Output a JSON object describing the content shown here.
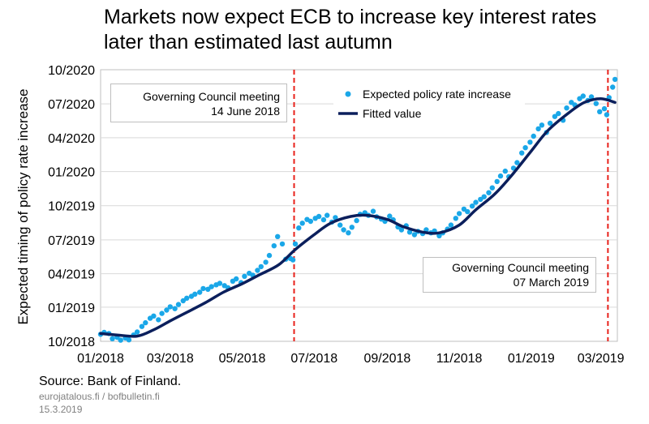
{
  "title_line1": "Markets now expect ECB to increase key interest rates",
  "title_line2": "later than estimated last autumn",
  "ylabel": "Expected timing of policy rate increase",
  "source": "Source: Bank of Finland.",
  "credit_line1": "eurojatalous.fi  / bofbulletin.fi",
  "credit_line2": "15.3.2019",
  "annotations": [
    {
      "line1": "Governing Council meeting",
      "line2": "14 June 2018",
      "date": "2018-06-14"
    },
    {
      "line1": "Governing Council meeting",
      "line2": "07 March 2019",
      "date": "2019-03-07"
    }
  ],
  "colors": {
    "scatter": "#1aa7e8",
    "fitted": "#0b1f5c",
    "vline": "#e8211b",
    "grid": "#d9d9d9"
  },
  "chart_data": {
    "type": "scatter",
    "title": "Markets now expect ECB to increase key interest rates later than estimated last autumn",
    "xlabel": "",
    "ylabel": "Expected timing of policy rate increase",
    "x_ticks": [
      "01/2018",
      "03/2018",
      "05/2018",
      "07/2018",
      "09/2018",
      "11/2018",
      "01/2019",
      "03/2019"
    ],
    "y_ticks": [
      "10/2018",
      "01/2019",
      "04/2019",
      "07/2019",
      "10/2019",
      "01/2020",
      "04/2020",
      "07/2020",
      "10/2020"
    ],
    "xlim": [
      "2018-01-01",
      "2019-03-15"
    ],
    "ylim": [
      "2018-10-01",
      "2020-10-01"
    ],
    "grid": "horizontal",
    "legend_position": "top-center",
    "series": [
      {
        "name": "Expected policy rate increase",
        "kind": "scatter",
        "x": [
          "2018-01-01",
          "2018-01-04",
          "2018-01-08",
          "2018-01-11",
          "2018-01-15",
          "2018-01-18",
          "2018-01-22",
          "2018-01-25",
          "2018-01-29",
          "2018-02-01",
          "2018-02-05",
          "2018-02-08",
          "2018-02-12",
          "2018-02-15",
          "2018-02-19",
          "2018-02-22",
          "2018-02-26",
          "2018-03-01",
          "2018-03-05",
          "2018-03-08",
          "2018-03-12",
          "2018-03-15",
          "2018-03-19",
          "2018-03-22",
          "2018-03-26",
          "2018-03-29",
          "2018-04-02",
          "2018-04-05",
          "2018-04-09",
          "2018-04-12",
          "2018-04-16",
          "2018-04-19",
          "2018-04-23",
          "2018-04-26",
          "2018-04-30",
          "2018-05-03",
          "2018-05-07",
          "2018-05-10",
          "2018-05-14",
          "2018-05-17",
          "2018-05-21",
          "2018-05-24",
          "2018-05-28",
          "2018-05-31",
          "2018-06-04",
          "2018-06-07",
          "2018-06-11",
          "2018-06-13",
          "2018-06-15",
          "2018-06-18",
          "2018-06-21",
          "2018-06-25",
          "2018-06-28",
          "2018-07-02",
          "2018-07-05",
          "2018-07-09",
          "2018-07-12",
          "2018-07-16",
          "2018-07-19",
          "2018-07-23",
          "2018-07-26",
          "2018-07-30",
          "2018-08-02",
          "2018-08-06",
          "2018-08-09",
          "2018-08-13",
          "2018-08-16",
          "2018-08-20",
          "2018-08-23",
          "2018-08-27",
          "2018-08-30",
          "2018-09-03",
          "2018-09-06",
          "2018-09-10",
          "2018-09-13",
          "2018-09-17",
          "2018-09-20",
          "2018-09-24",
          "2018-09-27",
          "2018-10-01",
          "2018-10-04",
          "2018-10-08",
          "2018-10-11",
          "2018-10-15",
          "2018-10-18",
          "2018-10-22",
          "2018-10-25",
          "2018-10-29",
          "2018-11-01",
          "2018-11-05",
          "2018-11-08",
          "2018-11-12",
          "2018-11-15",
          "2018-11-19",
          "2018-11-22",
          "2018-11-26",
          "2018-11-29",
          "2018-12-03",
          "2018-12-06",
          "2018-12-10",
          "2018-12-13",
          "2018-12-17",
          "2018-12-20",
          "2018-12-24",
          "2018-12-27",
          "2018-12-31",
          "2019-01-03",
          "2019-01-07",
          "2019-01-10",
          "2019-01-14",
          "2019-01-17",
          "2019-01-21",
          "2019-01-24",
          "2019-01-28",
          "2019-01-31",
          "2019-02-04",
          "2019-02-07",
          "2019-02-11",
          "2019-02-14",
          "2019-02-18",
          "2019-02-21",
          "2019-02-25",
          "2019-02-28",
          "2019-03-04",
          "2019-03-06",
          "2019-03-08",
          "2019-03-11",
          "2019-03-13"
        ],
        "y": [
          "2018-10-20",
          "2018-10-25",
          "2018-10-22",
          "2018-10-08",
          "2018-10-12",
          "2018-10-04",
          "2018-10-10",
          "2018-10-05",
          "2018-10-18",
          "2018-10-26",
          "2018-11-10",
          "2018-11-20",
          "2018-12-02",
          "2018-12-08",
          "2018-11-28",
          "2018-12-15",
          "2018-12-24",
          "2019-01-02",
          "2018-12-28",
          "2019-01-08",
          "2019-01-18",
          "2019-01-25",
          "2019-01-30",
          "2019-02-05",
          "2019-02-10",
          "2019-02-20",
          "2019-02-18",
          "2019-02-25",
          "2019-03-02",
          "2019-03-06",
          "2019-02-28",
          "2019-02-22",
          "2019-03-12",
          "2019-03-18",
          "2019-03-08",
          "2019-03-25",
          "2019-04-02",
          "2019-03-28",
          "2019-04-10",
          "2019-04-20",
          "2019-05-02",
          "2019-05-20",
          "2019-06-15",
          "2019-07-10",
          "2019-06-20",
          "2019-05-10",
          "2019-05-12",
          "2019-05-08",
          "2019-06-20",
          "2019-08-02",
          "2019-08-15",
          "2019-08-25",
          "2019-08-20",
          "2019-08-28",
          "2019-09-02",
          "2019-08-24",
          "2019-09-05",
          "2019-08-18",
          "2019-08-30",
          "2019-08-10",
          "2019-07-28",
          "2019-07-20",
          "2019-08-04",
          "2019-08-22",
          "2019-09-08",
          "2019-09-12",
          "2019-09-05",
          "2019-09-16",
          "2019-09-01",
          "2019-08-26",
          "2019-08-20",
          "2019-09-03",
          "2019-08-24",
          "2019-08-05",
          "2019-07-28",
          "2019-08-08",
          "2019-07-22",
          "2019-07-15",
          "2019-07-24",
          "2019-07-18",
          "2019-07-28",
          "2019-07-20",
          "2019-07-25",
          "2019-07-12",
          "2019-07-20",
          "2019-07-30",
          "2019-08-10",
          "2019-08-28",
          "2019-09-10",
          "2019-09-22",
          "2019-09-15",
          "2019-09-30",
          "2019-10-10",
          "2019-10-18",
          "2019-10-25",
          "2019-11-05",
          "2019-11-18",
          "2019-12-05",
          "2019-12-20",
          "2020-01-02",
          "2019-12-18",
          "2020-01-10",
          "2020-01-25",
          "2020-02-20",
          "2020-03-05",
          "2020-03-20",
          "2020-04-05",
          "2020-04-25",
          "2020-05-05",
          "2020-04-15",
          "2020-05-10",
          "2020-05-28",
          "2020-06-05",
          "2020-05-18",
          "2020-06-20",
          "2020-07-05",
          "2020-06-28",
          "2020-07-15",
          "2020-07-22",
          "2020-07-10",
          "2020-07-20",
          "2020-07-02",
          "2020-06-10",
          "2020-06-18",
          "2020-06-02",
          "2020-07-18",
          "2020-08-15",
          "2020-09-05"
        ]
      },
      {
        "name": "Fitted value",
        "kind": "line",
        "x": [
          "2018-01-01",
          "2018-01-15",
          "2018-02-01",
          "2018-02-15",
          "2018-03-01",
          "2018-03-15",
          "2018-04-01",
          "2018-04-15",
          "2018-05-01",
          "2018-05-15",
          "2018-06-01",
          "2018-06-15",
          "2018-07-01",
          "2018-07-15",
          "2018-08-01",
          "2018-08-15",
          "2018-09-01",
          "2018-09-15",
          "2018-10-01",
          "2018-10-15",
          "2018-11-01",
          "2018-11-15",
          "2018-12-01",
          "2018-12-15",
          "2019-01-01",
          "2019-01-15",
          "2019-02-01",
          "2019-02-15",
          "2019-03-01",
          "2019-03-13"
        ],
        "y": [
          "2018-10-22",
          "2018-10-18",
          "2018-10-15",
          "2018-11-01",
          "2018-11-25",
          "2018-12-18",
          "2019-01-15",
          "2019-02-10",
          "2019-03-05",
          "2019-03-28",
          "2019-04-25",
          "2019-06-05",
          "2019-07-15",
          "2019-08-15",
          "2019-09-02",
          "2019-09-05",
          "2019-08-25",
          "2019-08-05",
          "2019-07-22",
          "2019-07-20",
          "2019-08-10",
          "2019-09-20",
          "2019-11-01",
          "2019-12-20",
          "2020-02-25",
          "2020-04-20",
          "2020-06-05",
          "2020-07-05",
          "2020-07-15",
          "2020-07-05"
        ]
      }
    ]
  }
}
